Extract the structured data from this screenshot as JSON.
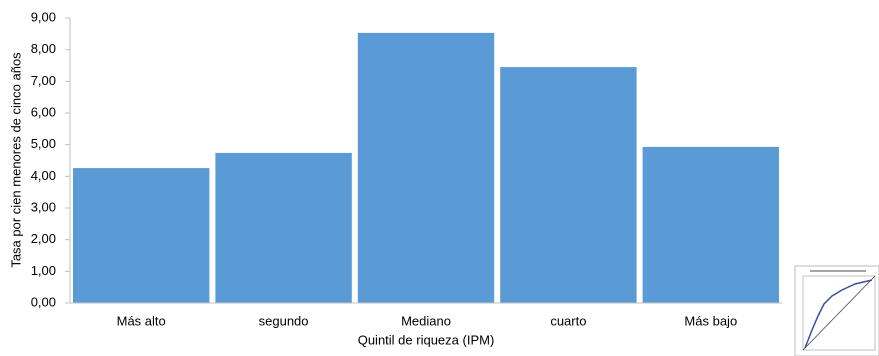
{
  "chart_data": {
    "type": "bar",
    "categories": [
      "Más alto",
      "segundo",
      "Mediano",
      "cuarto",
      "Más bajo"
    ],
    "values": [
      4.26,
      4.74,
      8.53,
      7.45,
      4.93
    ],
    "color": "#5b9bd5",
    "x_label": "Quintil de riqueza (IPM)",
    "y_label": "Tasa por cien menores de cinco años",
    "ylim": [
      0,
      9
    ],
    "yticks": [
      {
        "value": 0,
        "label": "0,00"
      },
      {
        "value": 1,
        "label": "1,00"
      },
      {
        "value": 2,
        "label": "2,00"
      },
      {
        "value": 3,
        "label": "3,00"
      },
      {
        "value": 4,
        "label": "4,00"
      },
      {
        "value": 5,
        "label": "5,00"
      },
      {
        "value": 6,
        "label": "6,00"
      },
      {
        "value": 7,
        "label": "7,00"
      },
      {
        "value": 8,
        "label": "8,00"
      },
      {
        "value": 9,
        "label": "9,00"
      }
    ],
    "grid": false
  }
}
